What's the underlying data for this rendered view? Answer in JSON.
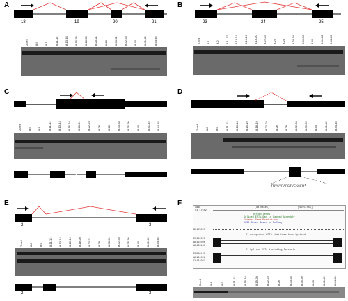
{
  "panels": {
    "A": {
      "label": "A",
      "exons": [
        "18",
        "19",
        "20",
        "21"
      ],
      "lanes": [
        "2-cell",
        "8-f",
        "8-1",
        "8-11-12",
        "8-13-14",
        "8-15-16",
        "8-18-20",
        "8-20-21",
        "8-28",
        "8-30-31",
        "8-32-33",
        "8-40",
        "8-41-42",
        "8-44-45"
      ]
    },
    "B": {
      "label": "B",
      "exons": [
        "23",
        "24",
        "25"
      ],
      "lanes": [
        "2-cell",
        "8-1",
        "8-2",
        "8-11-12",
        "8-13-14",
        "8-15-16",
        "8-18-20",
        "8-22-23",
        "8-26",
        "8-28",
        "8-33-34",
        "8-35-36",
        "8-40",
        "8-41-42",
        "8-44-45"
      ]
    },
    "C": {
      "label": "C",
      "lanes": [
        "2-cell",
        "8-f",
        "8-8",
        "8-11-12",
        "8-13-14",
        "8-15-16",
        "8-20-21",
        "8-22-23",
        "8-26",
        "8-28",
        "8-33-34",
        "8-35-39",
        "8-40",
        "8-41-42",
        "8-44-45"
      ]
    },
    "D": {
      "label": "D",
      "lanes": [
        "2-cell",
        "8-8",
        "8-9",
        "8-11-12",
        "8-13-14",
        "8-15-16",
        "8-18-19",
        "8-22-23",
        "8-26",
        "8-28",
        "8-32-33",
        "8-35-36",
        "8-40",
        "8-41-42",
        "8-44-45"
      ],
      "sequence": "TNYCYFAFSTYEKCFR*"
    },
    "E": {
      "label": "E",
      "exons": [
        "2",
        "3"
      ],
      "lanes": [
        "2-cell",
        "8-8",
        "8-9",
        "8-11-12",
        "8-13-14",
        "8-15-16",
        "8-18-20",
        "8-20-21",
        "8-28",
        "8-30-31",
        "8-32-33",
        "8-35-36",
        "8-40",
        "8-41-42",
        "8-44-45"
      ]
    },
    "F": {
      "label": "F",
      "header_left": [
        "Case",
        "V1_17552"
      ],
      "header_mid": "[88 bases]",
      "header_right": "[sls5/hoX]",
      "annot_lines": [
        "RefSeq Genes",
        "Spliced ESTs/Gap in Gapped Assembly",
        "Ensembl Gene Predictions",
        "UCSC Genes Based on RefSeq"
      ],
      "track_labels": [
        "BC105027",
        "EM422023",
        "AP164000",
        "AF423157",
        "EF066121",
        "AP164001",
        "CC121047"
      ],
      "track_notes": [
        "Xl nonspliced ESTs that have been Spliced",
        "Xl Spliced ESTs including Intronic"
      ],
      "lanes": [
        "2-cell",
        "8-8",
        "8-9",
        "8-11-12",
        "8-15-16",
        "8-19-20",
        "8-22-23",
        "8-26",
        "8-33-34",
        "8-35-39",
        "8-40",
        "8-41-42",
        "8-44-45"
      ]
    }
  }
}
